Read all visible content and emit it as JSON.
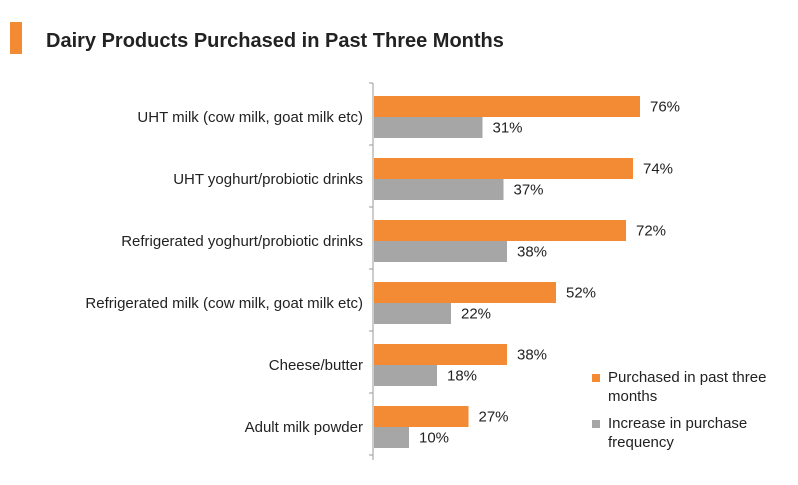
{
  "title": "Dairy Products Purchased in Past Three Months",
  "colors": {
    "accent": "#f28b34",
    "series1": "#f28b34",
    "series2": "#a6a6a6",
    "axis": "#999999"
  },
  "chart_data": {
    "type": "bar",
    "orientation": "horizontal",
    "title": "Dairy Products Purchased in Past Three Months",
    "categories": [
      "UHT milk (cow milk, goat milk etc)",
      "UHT yoghurt/probiotic drinks",
      "Refrigerated yoghurt/probiotic drinks",
      "Refrigerated milk (cow milk, goat milk etc)",
      "Cheese/butter",
      "Adult milk powder"
    ],
    "series": [
      {
        "name": "Purchased in past three months",
        "color": "#f28b34",
        "values": [
          76,
          74,
          72,
          52,
          38,
          27
        ],
        "labels": [
          "76%",
          "74%",
          "72%",
          "52%",
          "38%",
          "27%"
        ]
      },
      {
        "name": "Increase in purchase frequency",
        "color": "#a6a6a6",
        "values": [
          31,
          37,
          38,
          22,
          18,
          10
        ],
        "labels": [
          "31%",
          "37%",
          "38%",
          "22%",
          "18%",
          "10%"
        ]
      }
    ],
    "xlim": [
      0,
      100
    ],
    "grid": false,
    "legend_position": "bottom-right",
    "value_unit": "%"
  }
}
